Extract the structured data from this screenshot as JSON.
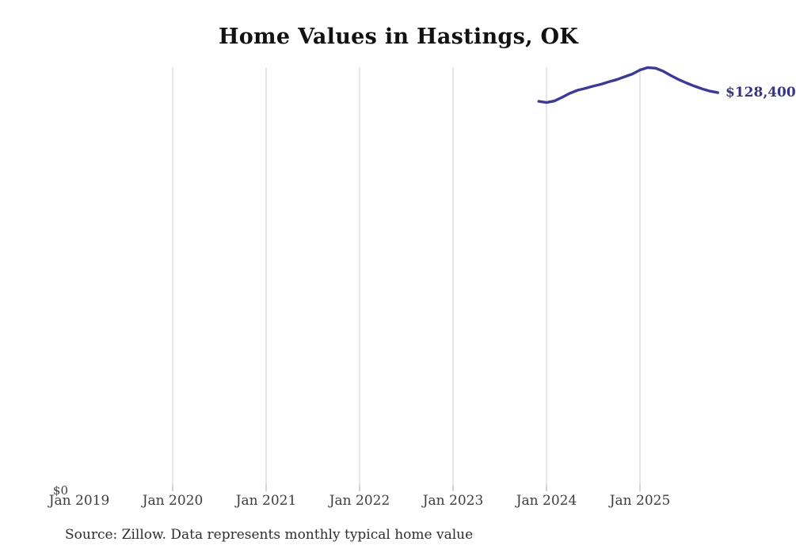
{
  "chart_data": {
    "type": "line",
    "title": "Home Values in Hastings, OK",
    "xlabel": "",
    "ylabel": "",
    "grid": "vertical-only",
    "legend": "none",
    "x_tick_labels": [
      "Jan 2019",
      "Jan 2020",
      "Jan 2021",
      "Jan 2022",
      "Jan 2023",
      "Jan 2024",
      "Jan 2025"
    ],
    "x_ticks_with_gridline": [
      false,
      true,
      true,
      true,
      true,
      true,
      true
    ],
    "y_axis": {
      "min": 0,
      "max": 136600,
      "zero_tick_label": "$0"
    },
    "gridline_color": "#cccccc",
    "tick_color": "#a9a9a9",
    "series": [
      {
        "name": "Monthly typical home value",
        "color": "#3c3a96",
        "end_label": "$128,400",
        "end_label_color": "#37357f",
        "points": [
          {
            "month": "2023-12",
            "value": 125600
          },
          {
            "month": "2024-01",
            "value": 125200
          },
          {
            "month": "2024-02",
            "value": 125700
          },
          {
            "month": "2024-03",
            "value": 126900
          },
          {
            "month": "2024-04",
            "value": 128200
          },
          {
            "month": "2024-05",
            "value": 129200
          },
          {
            "month": "2024-06",
            "value": 129800
          },
          {
            "month": "2024-07",
            "value": 130500
          },
          {
            "month": "2024-08",
            "value": 131100
          },
          {
            "month": "2024-09",
            "value": 131900
          },
          {
            "month": "2024-10",
            "value": 132600
          },
          {
            "month": "2024-11",
            "value": 133500
          },
          {
            "month": "2024-12",
            "value": 134400
          },
          {
            "month": "2025-01",
            "value": 135700
          },
          {
            "month": "2025-02",
            "value": 136500
          },
          {
            "month": "2025-03",
            "value": 136300
          },
          {
            "month": "2025-04",
            "value": 135300
          },
          {
            "month": "2025-05",
            "value": 133900
          },
          {
            "month": "2025-06",
            "value": 132600
          },
          {
            "month": "2025-07",
            "value": 131500
          },
          {
            "month": "2025-08",
            "value": 130500
          },
          {
            "month": "2025-09",
            "value": 129600
          },
          {
            "month": "2025-10",
            "value": 128900
          },
          {
            "month": "2025-11",
            "value": 128400
          }
        ]
      }
    ]
  },
  "footer": {
    "source_note": "Source: Zillow. Data represents monthly typical home value"
  }
}
